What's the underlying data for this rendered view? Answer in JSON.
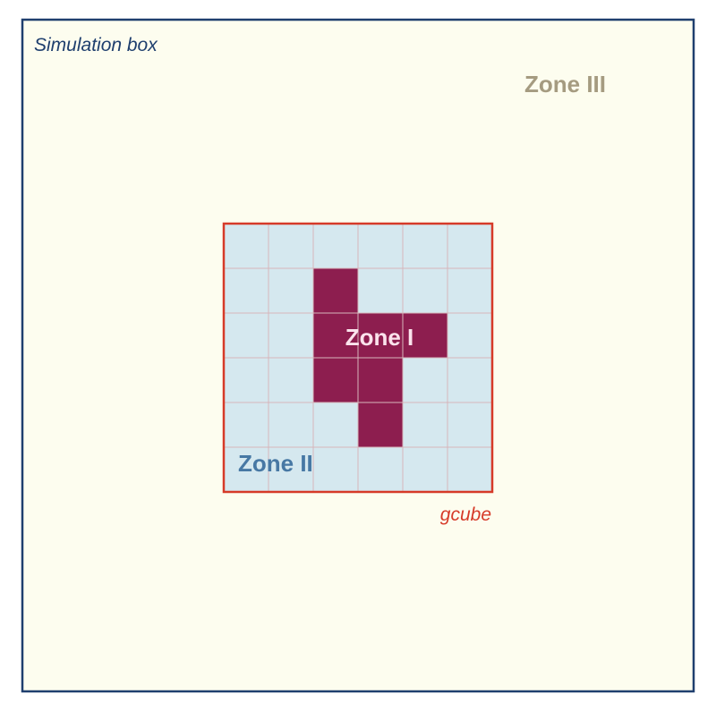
{
  "labels": {
    "simulation_box": "Simulation box",
    "zone_one": "Zone I",
    "zone_two": "Zone II",
    "zone_three": "Zone III",
    "gcube": "gcube"
  },
  "grid": {
    "rows": 6,
    "cols": 6,
    "zone_one_cells": [
      [
        1,
        2
      ],
      [
        2,
        2
      ],
      [
        2,
        3
      ],
      [
        2,
        4
      ],
      [
        3,
        2
      ],
      [
        3,
        3
      ],
      [
        4,
        3
      ]
    ]
  },
  "colors": {
    "sim_box_fill": "#fdfdef",
    "sim_box_stroke": "#1f3f6e",
    "sim_box_label": "#1f3f6e",
    "zone_three_label": "#a59b80",
    "gcube_fill": "#d5e8ef",
    "gcube_grid": "#d7b6bb",
    "gcube_stroke": "#d63a28",
    "gcube_label": "#d63a28",
    "zone_one_fill": "#8d1e4f",
    "zone_one_label": "#fbe3ec",
    "zone_two_label": "#4778a4"
  }
}
